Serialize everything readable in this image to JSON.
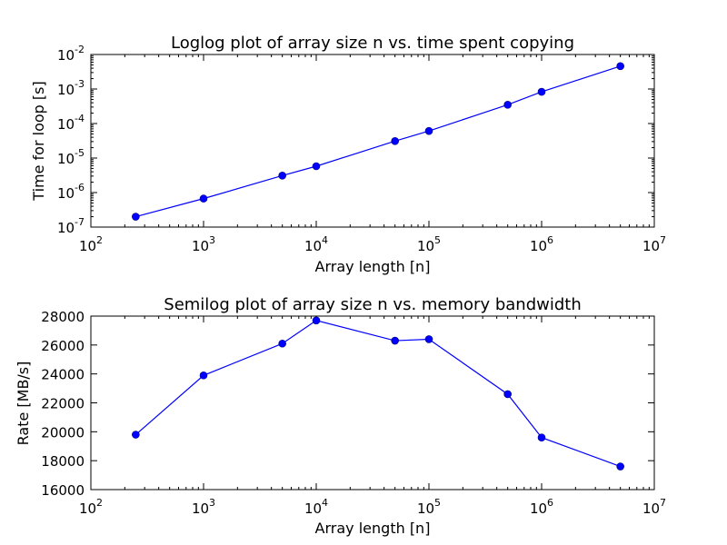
{
  "chart_data": [
    {
      "type": "line",
      "title": "Loglog plot of array size n vs. time spent copying",
      "xlabel": "Array length [n]",
      "ylabel": "Time for loop [s]",
      "xscale": "log",
      "yscale": "log",
      "xlim": [
        100,
        10000000
      ],
      "ylim": [
        1e-07,
        0.01
      ],
      "grid": false,
      "x_ticks": [
        {
          "base": "10",
          "exp": "2",
          "value": 100
        },
        {
          "base": "10",
          "exp": "3",
          "value": 1000
        },
        {
          "base": "10",
          "exp": "4",
          "value": 10000
        },
        {
          "base": "10",
          "exp": "5",
          "value": 100000
        },
        {
          "base": "10",
          "exp": "6",
          "value": 1000000
        },
        {
          "base": "10",
          "exp": "7",
          "value": 10000000
        }
      ],
      "y_ticks": [
        {
          "base": "10",
          "exp": "-7",
          "value": 1e-07
        },
        {
          "base": "10",
          "exp": "-6",
          "value": 1e-06
        },
        {
          "base": "10",
          "exp": "-5",
          "value": 1e-05
        },
        {
          "base": "10",
          "exp": "-4",
          "value": 0.0001
        },
        {
          "base": "10",
          "exp": "-3",
          "value": 0.001
        },
        {
          "base": "10",
          "exp": "-2",
          "value": 0.01
        }
      ],
      "series": [
        {
          "color": "#0000ff",
          "marker": "circle",
          "x": [
            250,
            1000,
            5000,
            10000,
            50000,
            100000,
            500000,
            1000000,
            5000000
          ],
          "y": [
            2e-07,
            6.7e-07,
            3.1e-06,
            5.8e-06,
            3.1e-05,
            6.1e-05,
            0.00035,
            0.00083,
            0.0046
          ]
        }
      ]
    },
    {
      "type": "line",
      "title": "Semilog plot of array size n vs. memory bandwidth",
      "xlabel": "Array length [n]",
      "ylabel": "Rate [MB/s]",
      "xscale": "log",
      "yscale": "linear",
      "xlim": [
        100,
        10000000
      ],
      "ylim": [
        16000,
        28000
      ],
      "grid": false,
      "x_ticks": [
        {
          "base": "10",
          "exp": "2",
          "value": 100
        },
        {
          "base": "10",
          "exp": "3",
          "value": 1000
        },
        {
          "base": "10",
          "exp": "4",
          "value": 10000
        },
        {
          "base": "10",
          "exp": "5",
          "value": 100000
        },
        {
          "base": "10",
          "exp": "6",
          "value": 1000000
        },
        {
          "base": "10",
          "exp": "7",
          "value": 10000000
        }
      ],
      "y_ticks": [
        {
          "label": "16000",
          "value": 16000
        },
        {
          "label": "18000",
          "value": 18000
        },
        {
          "label": "20000",
          "value": 20000
        },
        {
          "label": "22000",
          "value": 22000
        },
        {
          "label": "24000",
          "value": 24000
        },
        {
          "label": "26000",
          "value": 26000
        },
        {
          "label": "28000",
          "value": 28000
        }
      ],
      "series": [
        {
          "color": "#0000ff",
          "marker": "circle",
          "x": [
            250,
            1000,
            5000,
            10000,
            50000,
            100000,
            500000,
            1000000,
            5000000
          ],
          "y": [
            19800,
            23900,
            26100,
            27700,
            26300,
            26400,
            22600,
            19600,
            17600
          ]
        }
      ]
    }
  ]
}
